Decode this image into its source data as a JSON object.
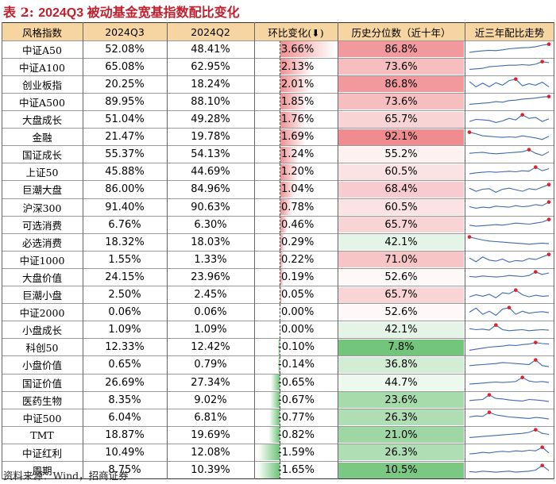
{
  "title": {
    "label": "表 2:",
    "text": "2024Q3 被动基金宽基指数配比变化"
  },
  "header": [
    "风格指数",
    "2024Q3",
    "2024Q2",
    "环比变化(⬇)",
    "历史分位数（近十年）",
    "近三年配比走势"
  ],
  "rows": [
    {
      "name": "中证A50",
      "q3": "52.08%",
      "q2": "48.41%",
      "chg": "3.66%",
      "pct": "86.8%",
      "chg_val": 3.66,
      "pct_val": 86.8,
      "trend": [
        0.15,
        0.25,
        0.3,
        0.35,
        0.32,
        0.4,
        0.5,
        0.55,
        0.6,
        0.62,
        0.7,
        0.85,
        0.95
      ]
    },
    {
      "name": "中证A100",
      "q3": "65.08%",
      "q2": "62.95%",
      "chg": "2.13%",
      "pct": "73.6%",
      "chg_val": 2.13,
      "pct_val": 73.6,
      "trend": [
        0.2,
        0.25,
        0.3,
        0.45,
        0.5,
        0.55,
        0.6,
        0.6,
        0.65,
        0.6,
        0.7,
        0.95,
        0.85
      ]
    },
    {
      "name": "创业板指",
      "q3": "20.25%",
      "q2": "18.24%",
      "chg": "2.01%",
      "pct": "86.8%",
      "chg_val": 2.01,
      "pct_val": 86.8,
      "trend": [
        0.7,
        0.2,
        0.55,
        0.2,
        0.6,
        0.35,
        0.8,
        0.95,
        0.3,
        0.5,
        0.35,
        0.65,
        0.2
      ]
    },
    {
      "name": "中证A500",
      "q3": "89.95%",
      "q2": "88.10%",
      "chg": "1.85%",
      "pct": "73.6%",
      "chg_val": 1.85,
      "pct_val": 73.6,
      "trend": [
        0.2,
        0.25,
        0.3,
        0.35,
        0.45,
        0.4,
        0.55,
        0.6,
        0.7,
        0.75,
        0.8,
        0.9,
        0.95
      ]
    },
    {
      "name": "大盘成长",
      "q3": "51.04%",
      "q2": "49.28%",
      "chg": "1.76%",
      "pct": "65.7%",
      "chg_val": 1.76,
      "pct_val": 65.7,
      "trend": [
        0.3,
        0.5,
        0.45,
        0.4,
        0.2,
        0.35,
        0.6,
        0.45,
        0.95,
        0.6,
        0.7,
        0.3,
        0.55
      ]
    },
    {
      "name": "金融",
      "q3": "21.47%",
      "q2": "19.78%",
      "chg": "1.69%",
      "pct": "92.1%",
      "chg_val": 1.69,
      "pct_val": 92.1,
      "trend": [
        0.95,
        0.8,
        0.6,
        0.55,
        0.5,
        0.45,
        0.5,
        0.45,
        0.6,
        0.5,
        0.4,
        0.25,
        0.55
      ]
    },
    {
      "name": "国证成长",
      "q3": "55.37%",
      "q2": "54.13%",
      "chg": "1.24%",
      "pct": "55.2%",
      "chg_val": 1.24,
      "pct_val": 55.2,
      "trend": [
        0.6,
        0.65,
        0.7,
        0.6,
        0.55,
        0.6,
        0.65,
        0.7,
        0.75,
        0.95,
        0.6,
        0.4,
        0.75
      ]
    },
    {
      "name": "上证50",
      "q3": "45.88%",
      "q2": "44.69%",
      "chg": "1.20%",
      "pct": "60.5%",
      "chg_val": 1.2,
      "pct_val": 60.5,
      "trend": [
        0.3,
        0.4,
        0.45,
        0.5,
        0.45,
        0.5,
        0.55,
        0.5,
        0.6,
        0.55,
        0.95,
        0.6,
        0.8
      ]
    },
    {
      "name": "巨潮大盘",
      "q3": "86.00%",
      "q2": "84.96%",
      "chg": "1.04%",
      "pct": "68.4%",
      "chg_val": 1.04,
      "pct_val": 68.4,
      "trend": [
        0.6,
        0.3,
        0.5,
        0.55,
        0.2,
        0.5,
        0.6,
        0.45,
        0.3,
        0.55,
        0.45,
        0.7,
        0.95
      ]
    },
    {
      "name": "沪深300",
      "q3": "91.40%",
      "q2": "90.63%",
      "chg": "0.78%",
      "pct": "60.5%",
      "chg_val": 0.78,
      "pct_val": 60.5,
      "trend": [
        0.5,
        0.35,
        0.45,
        0.4,
        0.55,
        0.5,
        0.45,
        0.6,
        0.5,
        0.55,
        0.7,
        0.6,
        0.95
      ]
    },
    {
      "name": "可选消费",
      "q3": "6.76%",
      "q2": "6.30%",
      "chg": "0.46%",
      "pct": "65.7%",
      "chg_val": 0.46,
      "pct_val": 65.7,
      "trend": [
        0.4,
        0.3,
        0.35,
        0.4,
        0.45,
        0.4,
        0.5,
        0.6,
        0.55,
        0.5,
        0.6,
        0.7,
        0.95
      ]
    },
    {
      "name": "必选消费",
      "q3": "18.32%",
      "q2": "18.03%",
      "chg": "0.29%",
      "pct": "42.1%",
      "chg_val": 0.29,
      "pct_val": 42.1,
      "trend": [
        0.95,
        0.8,
        0.65,
        0.55,
        0.5,
        0.45,
        0.4,
        0.35,
        0.3,
        0.25,
        0.3,
        0.35,
        0.3
      ]
    },
    {
      "name": "中证1000",
      "q3": "1.55%",
      "q2": "1.33%",
      "chg": "0.22%",
      "pct": "71.0%",
      "chg_val": 0.22,
      "pct_val": 71.0,
      "trend": [
        0.6,
        0.25,
        0.7,
        0.4,
        0.3,
        0.5,
        0.2,
        0.35,
        0.3,
        0.55,
        0.45,
        0.7,
        0.95
      ]
    },
    {
      "name": "大盘价值",
      "q3": "24.15%",
      "q2": "23.96%",
      "chg": "0.19%",
      "pct": "52.6%",
      "chg_val": 0.19,
      "pct_val": 52.6,
      "trend": [
        0.5,
        0.45,
        0.55,
        0.5,
        0.45,
        0.5,
        0.6,
        0.55,
        0.5,
        0.6,
        0.95,
        0.7,
        0.85
      ]
    },
    {
      "name": "巨潮小盘",
      "q3": "2.50%",
      "q2": "2.45%",
      "chg": "0.05%",
      "pct": "65.7%",
      "chg_val": 0.05,
      "pct_val": 65.7,
      "trend": [
        0.3,
        0.5,
        0.35,
        0.55,
        0.2,
        0.7,
        0.6,
        0.95,
        0.5,
        0.3,
        0.45,
        0.35,
        0.4
      ]
    },
    {
      "name": "中证2000",
      "q3": "0.06%",
      "q2": "0.06%",
      "chg": "0.00%",
      "pct": "52.6%",
      "chg_val": 0.0,
      "pct_val": 52.6,
      "trend": [
        0.5,
        0.9,
        0.3,
        0.6,
        0.2,
        0.8,
        0.95,
        0.3,
        0.6,
        0.4,
        0.5,
        0.55,
        0.45
      ]
    },
    {
      "name": "小盘成长",
      "q3": "1.09%",
      "q2": "1.09%",
      "chg": "0.00%",
      "pct": "42.1%",
      "chg_val": 0.0,
      "pct_val": 42.1,
      "trend": [
        0.6,
        0.5,
        0.55,
        0.45,
        0.95,
        0.5,
        0.4,
        0.45,
        0.5,
        0.4,
        0.45,
        0.5,
        0.45
      ]
    },
    {
      "name": "科创50",
      "q3": "12.33%",
      "q2": "12.42%",
      "chg": "-0.10%",
      "pct": "7.8%",
      "chg_val": -0.1,
      "pct_val": 7.8,
      "trend": [
        0.2,
        0.3,
        0.4,
        0.5,
        0.55,
        0.6,
        0.7,
        0.65,
        0.75,
        0.8,
        0.95,
        0.85,
        0.8
      ]
    },
    {
      "name": "小盘价值",
      "q3": "0.65%",
      "q2": "0.79%",
      "chg": "-0.14%",
      "pct": "36.8%",
      "chg_val": -0.14,
      "pct_val": 36.8,
      "trend": [
        0.4,
        0.45,
        0.5,
        0.55,
        0.6,
        0.7,
        0.65,
        0.6,
        0.55,
        0.5,
        0.95,
        0.4,
        0.3
      ]
    },
    {
      "name": "国证价值",
      "q3": "26.69%",
      "q2": "27.34%",
      "chg": "-0.65%",
      "pct": "44.7%",
      "chg_val": -0.65,
      "pct_val": 44.7,
      "trend": [
        0.3,
        0.35,
        0.4,
        0.45,
        0.5,
        0.45,
        0.5,
        0.55,
        0.95,
        0.6,
        0.5,
        0.55,
        0.45
      ]
    },
    {
      "name": "医药生物",
      "q3": "8.35%",
      "q2": "9.02%",
      "chg": "-0.67%",
      "pct": "23.6%",
      "chg_val": -0.67,
      "pct_val": 23.6,
      "trend": [
        0.4,
        0.45,
        0.5,
        0.95,
        0.6,
        0.55,
        0.45,
        0.4,
        0.35,
        0.5,
        0.45,
        0.4,
        0.3
      ]
    },
    {
      "name": "中证500",
      "q3": "6.04%",
      "q2": "6.81%",
      "chg": "-0.77%",
      "pct": "26.3%",
      "chg_val": -0.77,
      "pct_val": 26.3,
      "trend": [
        0.5,
        0.6,
        0.55,
        0.95,
        0.7,
        0.6,
        0.5,
        0.45,
        0.4,
        0.35,
        0.45,
        0.4,
        0.3
      ]
    },
    {
      "name": "TMT",
      "q3": "18.87%",
      "q2": "19.69%",
      "chg": "-0.82%",
      "pct": "21.0%",
      "chg_val": -0.82,
      "pct_val": 21.0,
      "trend": [
        0.2,
        0.25,
        0.3,
        0.35,
        0.4,
        0.45,
        0.5,
        0.55,
        0.6,
        0.7,
        0.95,
        0.6,
        0.5
      ]
    },
    {
      "name": "中证红利",
      "q3": "10.49%",
      "q2": "12.08%",
      "chg": "-1.59%",
      "pct": "26.3%",
      "chg_val": -1.59,
      "pct_val": 26.3,
      "trend": [
        0.3,
        0.35,
        0.45,
        0.4,
        0.5,
        0.55,
        0.5,
        0.6,
        0.55,
        0.65,
        0.6,
        0.95,
        0.4
      ]
    },
    {
      "name": "周期",
      "q3": "8.75%",
      "q2": "10.39%",
      "chg": "-1.65%",
      "pct": "10.5%",
      "chg_val": -1.65,
      "pct_val": 10.5,
      "trend": [
        0.35,
        0.3,
        0.4,
        0.35,
        0.3,
        0.35,
        0.4,
        0.3,
        0.35,
        0.4,
        0.5,
        0.95,
        0.45
      ]
    }
  ],
  "colors": {
    "header_bg": "#f6d5a0",
    "positive": "#ef8f91",
    "negative": "#6fc37a",
    "pct_high": "#f08b8f",
    "pct_low": "#72c57a",
    "spark": "#3b6bb0",
    "spark_peak": "#e0202a"
  },
  "source": "资料来源：Wind，招商证券"
}
